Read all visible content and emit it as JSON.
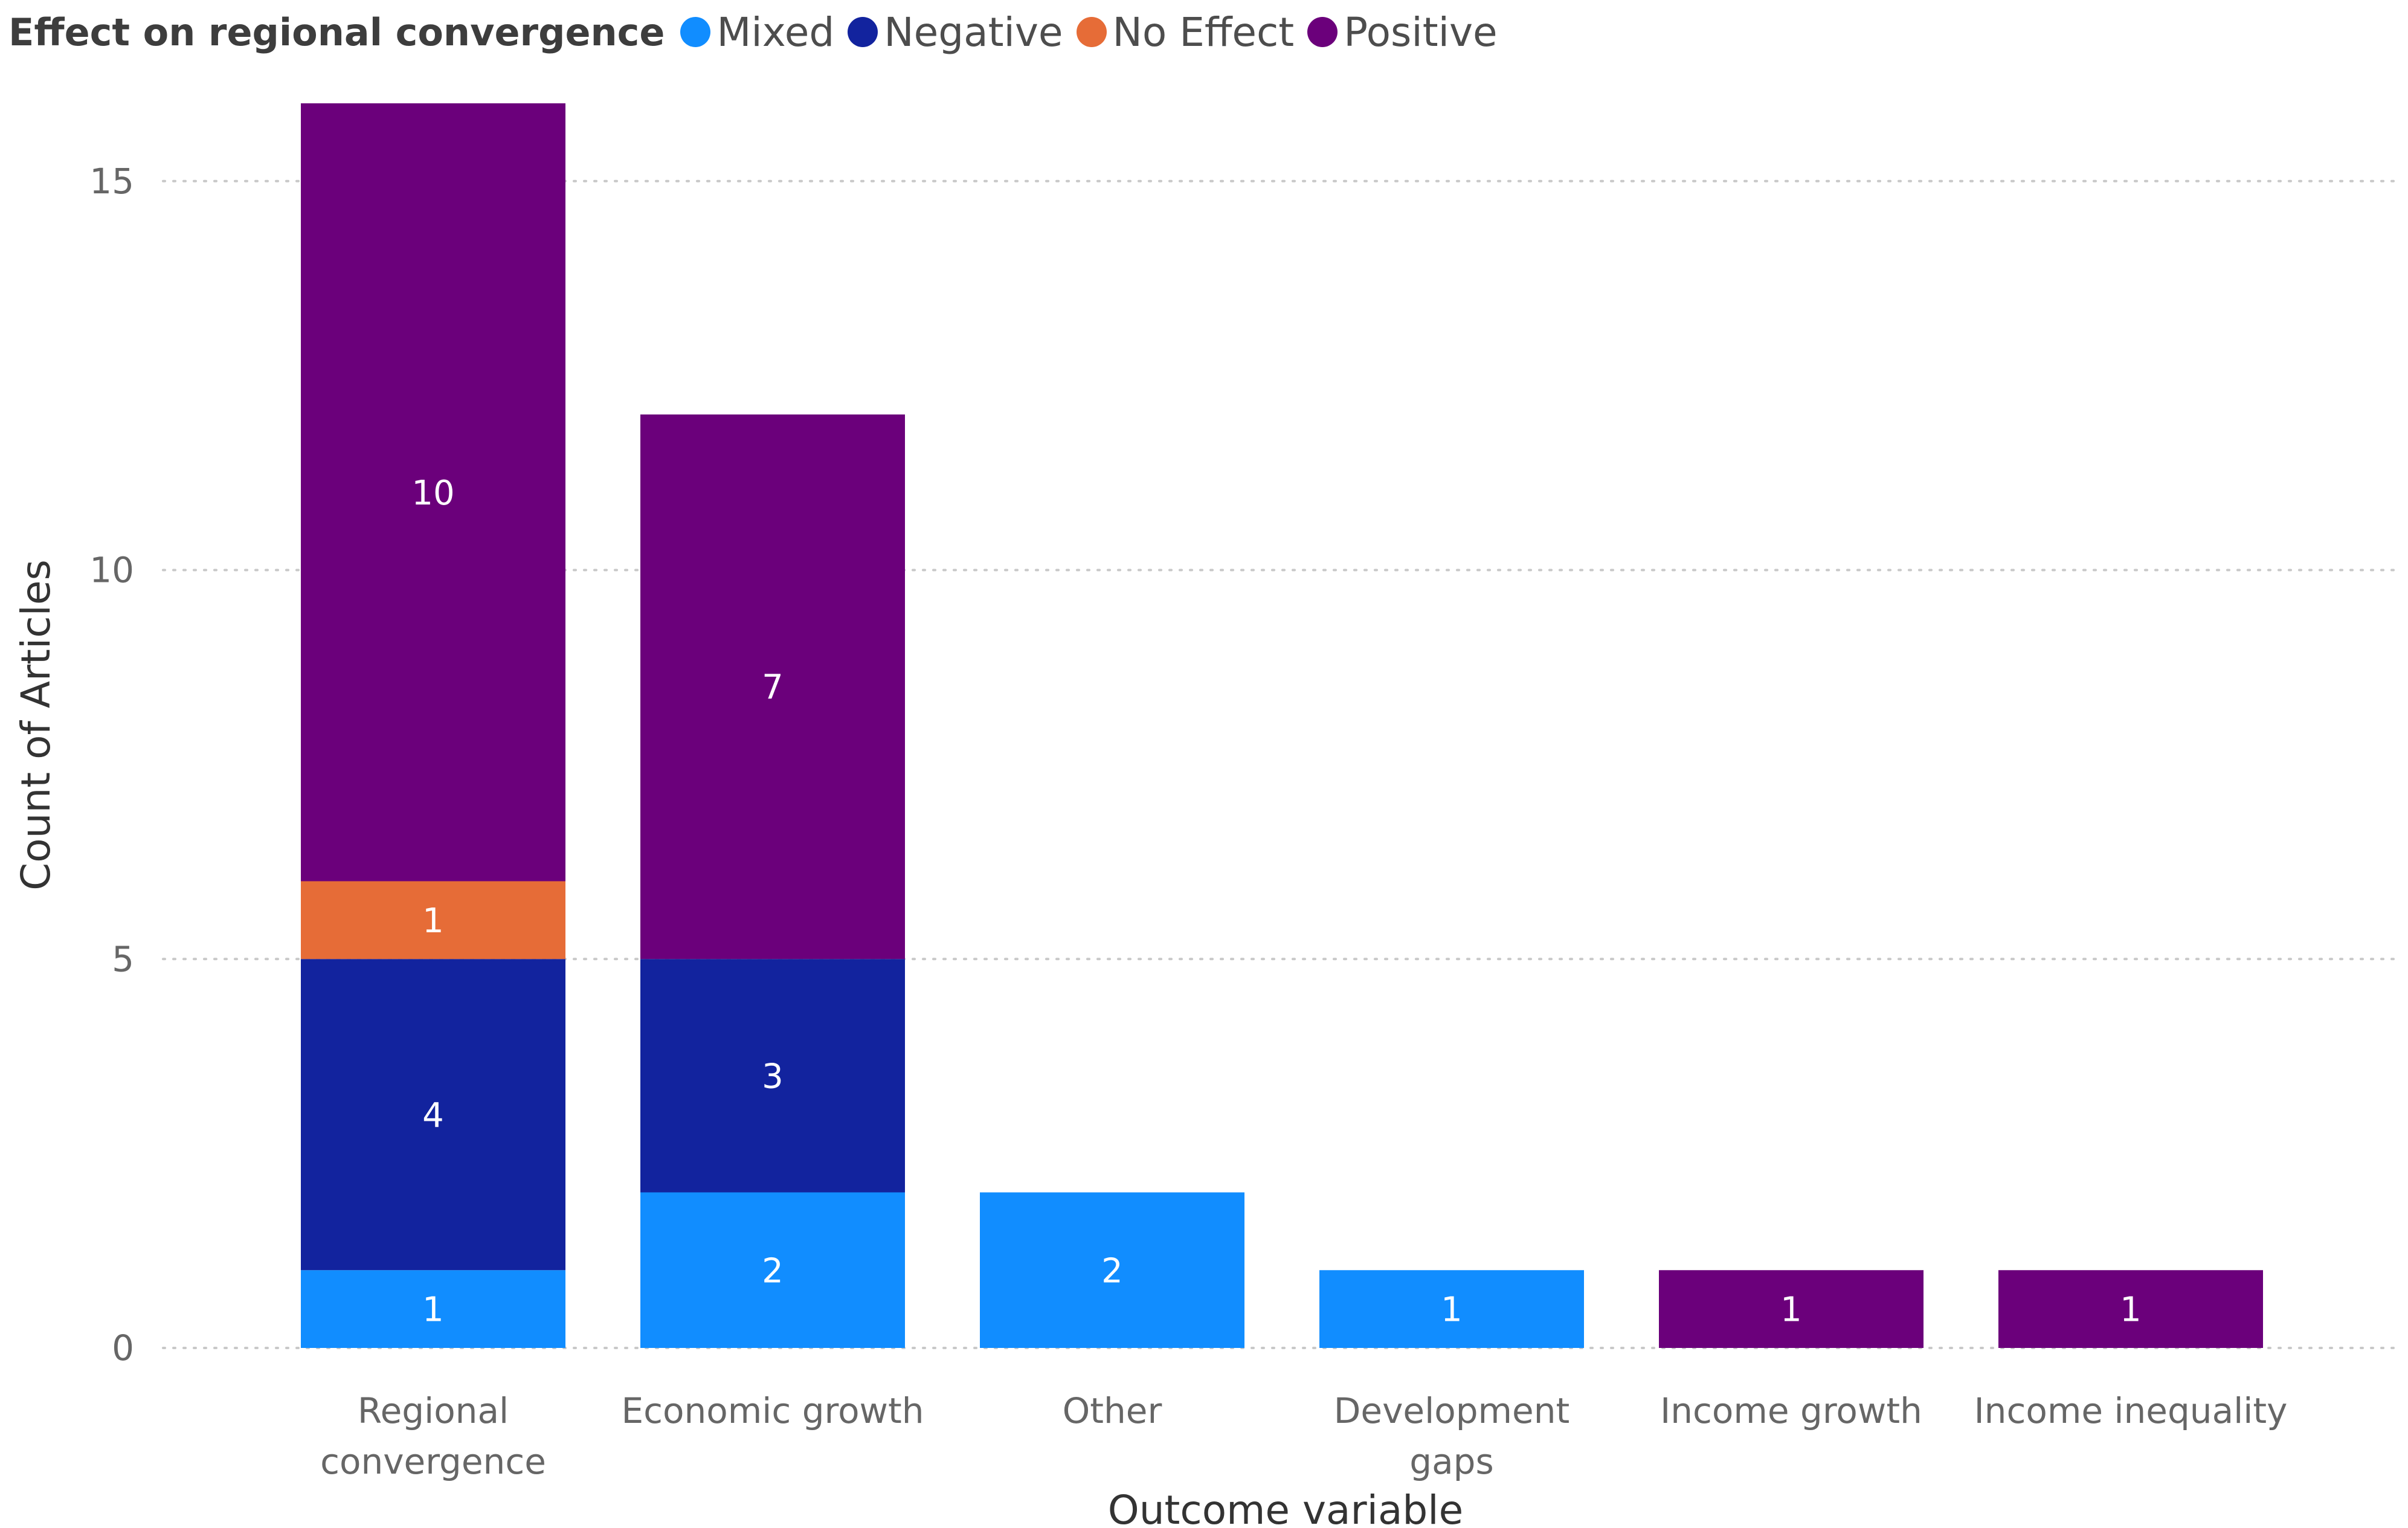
{
  "chart_data": {
    "type": "bar",
    "stacked": true,
    "legend_title": "Effect on regional convergence",
    "legend_position": "top-left",
    "categories": [
      [
        "Regional",
        "convergence"
      ],
      [
        "Economic growth"
      ],
      [
        "Other"
      ],
      [
        "Development",
        "gaps"
      ],
      [
        "Income growth"
      ],
      [
        "Income inequality"
      ]
    ],
    "series": [
      {
        "name": "Mixed",
        "color": "#118DFF",
        "values": [
          1,
          2,
          2,
          1,
          0,
          0
        ]
      },
      {
        "name": "Negative",
        "color": "#12239E",
        "values": [
          4,
          3,
          0,
          0,
          0,
          0
        ]
      },
      {
        "name": "No Effect",
        "color": "#E66C37",
        "values": [
          1,
          0,
          0,
          0,
          0,
          0
        ]
      },
      {
        "name": "Positive",
        "color": "#6B007B",
        "values": [
          10,
          7,
          0,
          0,
          1,
          1
        ]
      }
    ],
    "xlabel": "Outcome variable",
    "ylabel": "Count of Articles",
    "ylim": [
      0,
      16
    ],
    "yticks": [
      0,
      5,
      10,
      15
    ],
    "grid": true,
    "data_labels": true
  }
}
